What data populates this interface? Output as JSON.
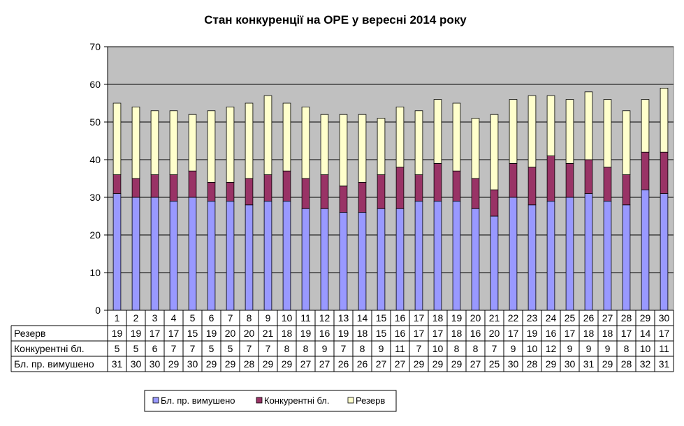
{
  "chart_data": {
    "type": "bar",
    "stacked": true,
    "title": "Стан конкуренції на ОРЕ  у вересні 2014 року",
    "categories": [
      "1",
      "2",
      "3",
      "4",
      "5",
      "6",
      "7",
      "8",
      "9",
      "10",
      "11",
      "12",
      "13",
      "14",
      "15",
      "16",
      "17",
      "18",
      "19",
      "20",
      "21",
      "22",
      "23",
      "24",
      "25",
      "26",
      "27",
      "28",
      "29",
      "30"
    ],
    "series": [
      {
        "name": "Бл. пр. вимушено",
        "color": "#9999ff",
        "values": [
          31,
          30,
          30,
          29,
          30,
          29,
          29,
          28,
          29,
          29,
          27,
          27,
          26,
          26,
          27,
          27,
          29,
          29,
          29,
          27,
          25,
          30,
          28,
          29,
          30,
          31,
          29,
          28,
          32,
          31
        ]
      },
      {
        "name": "Конкурентні бл.",
        "color": "#993366",
        "values": [
          5,
          5,
          6,
          7,
          7,
          5,
          5,
          7,
          7,
          8,
          8,
          9,
          7,
          8,
          9,
          11,
          7,
          10,
          8,
          8,
          7,
          9,
          10,
          12,
          9,
          9,
          9,
          8,
          10,
          11
        ]
      },
      {
        "name": "Резерв",
        "color": "#ffffcc",
        "values": [
          19,
          19,
          17,
          17,
          15,
          19,
          20,
          20,
          21,
          18,
          19,
          16,
          19,
          18,
          15,
          16,
          17,
          17,
          18,
          16,
          20,
          17,
          19,
          16,
          17,
          18,
          18,
          17,
          14,
          17
        ]
      }
    ],
    "table_rows": [
      {
        "label": "Резерв",
        "series": 2
      },
      {
        "label": "Конкурентні бл.",
        "series": 1
      },
      {
        "label": "Бл. пр. вимушено",
        "series": 0
      }
    ],
    "ylim": [
      0,
      70
    ],
    "yticks": [
      0,
      10,
      20,
      30,
      40,
      50,
      60,
      70
    ],
    "grid": true,
    "plot_background": "#c0c0c0",
    "legend_position": "bottom"
  }
}
